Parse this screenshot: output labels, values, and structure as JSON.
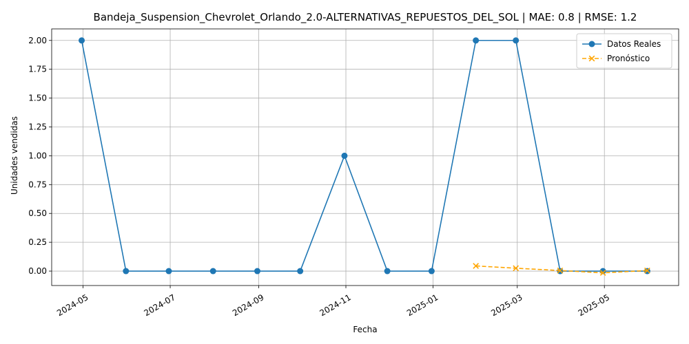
{
  "chart_data": {
    "type": "line",
    "title": "Bandeja_Suspension_Chevrolet_Orlando_2.0-ALTERNATIVAS_REPUESTOS_DEL_SOL | MAE: 0.8 | RMSE: 1.2",
    "xlabel": "Fecha",
    "ylabel": "Unidades vendidas",
    "xlim": [
      "2024-04-09",
      "2025-06-22"
    ],
    "ylim": [
      -0.125,
      2.1
    ],
    "x_ticks": [
      "2024-05",
      "2024-07",
      "2024-09",
      "2024-11",
      "2025-01",
      "2025-03",
      "2025-05"
    ],
    "y_ticks": [
      "0.00",
      "0.25",
      "0.50",
      "0.75",
      "1.00",
      "1.25",
      "1.50",
      "1.75",
      "2.00"
    ],
    "grid": true,
    "legend_position": "top-right",
    "series": [
      {
        "name": "Datos Reales",
        "color": "#1f77b4",
        "style": "solid",
        "marker": "circle",
        "x": [
          "2024-04-30",
          "2024-05-31",
          "2024-06-30",
          "2024-07-31",
          "2024-08-31",
          "2024-09-30",
          "2024-10-31",
          "2024-11-30",
          "2024-12-31",
          "2025-01-31",
          "2025-02-28",
          "2025-03-31",
          "2025-04-30",
          "2025-05-31"
        ],
        "values": [
          2,
          0,
          0,
          0,
          0,
          0,
          1,
          0,
          0,
          2,
          2,
          0,
          0,
          0
        ]
      },
      {
        "name": "Pronóstico",
        "color": "#ffa500",
        "style": "dashed",
        "marker": "x",
        "x": [
          "2025-01-31",
          "2025-02-28",
          "2025-03-31",
          "2025-04-30",
          "2025-05-31"
        ],
        "values": [
          0.045,
          0.025,
          0.005,
          -0.015,
          0.005
        ]
      }
    ]
  }
}
